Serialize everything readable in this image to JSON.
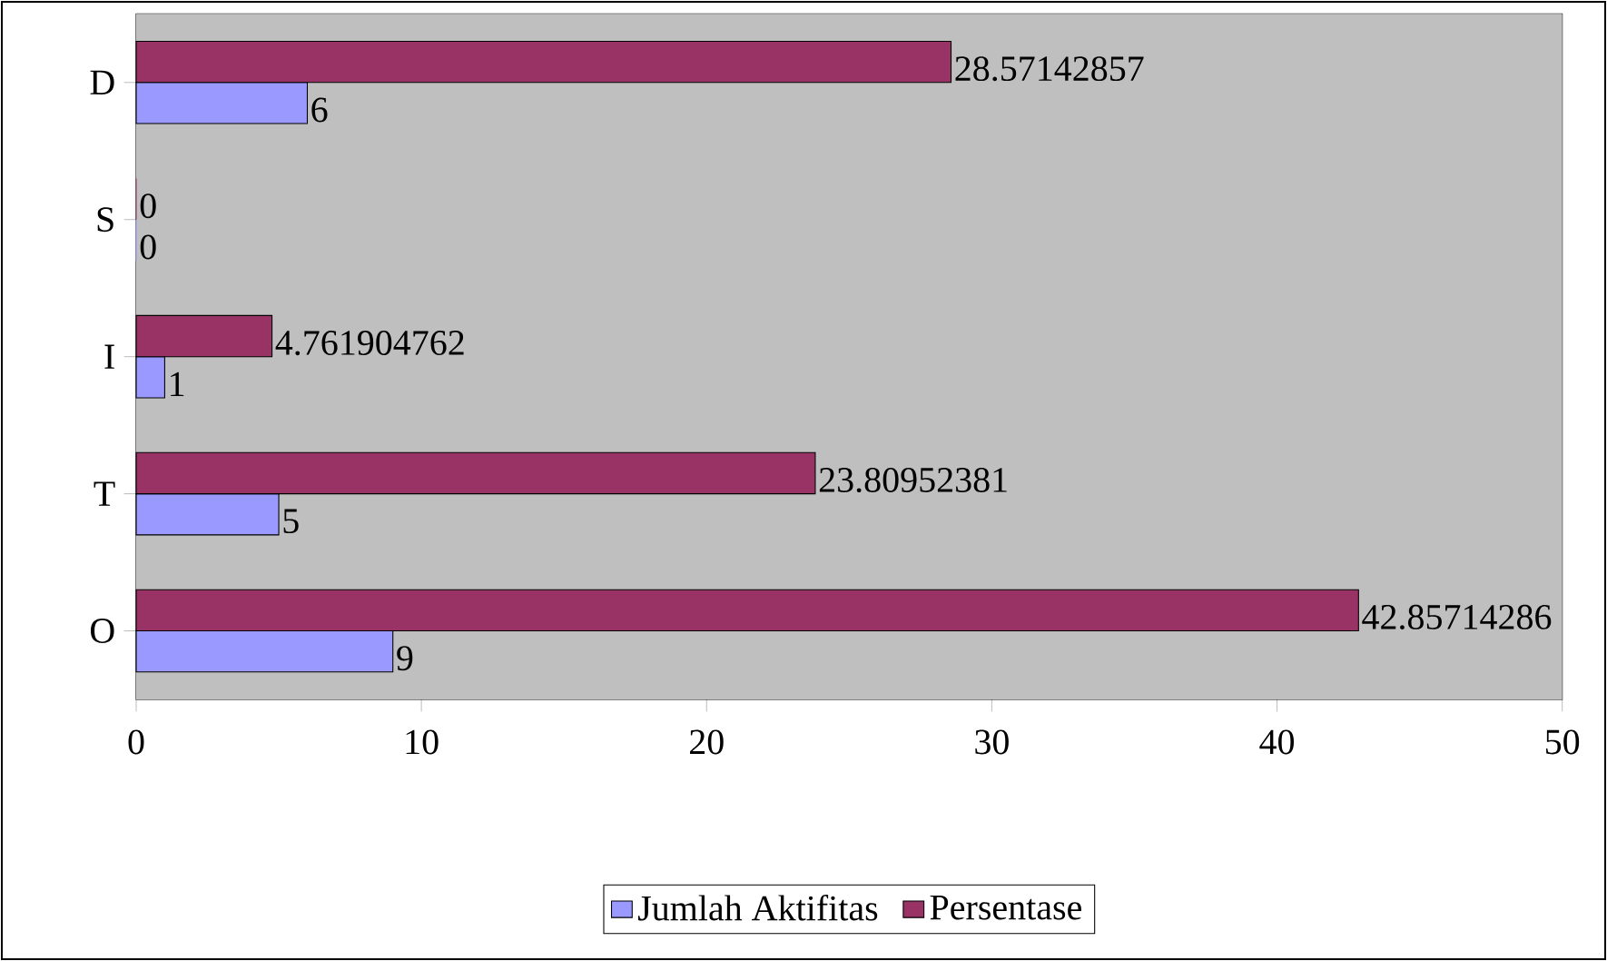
{
  "chart_data": {
    "type": "bar",
    "orientation": "horizontal",
    "categories": [
      "D",
      "S",
      "I",
      "T",
      "O"
    ],
    "series": [
      {
        "name": "Jumlah Aktifitas",
        "color": "#9999ff",
        "values": [
          6,
          0,
          1,
          5,
          9
        ]
      },
      {
        "name": "Persentase",
        "color": "#993366",
        "values": [
          28.57142857,
          0,
          4.761904762,
          23.80952381,
          42.85714286
        ]
      }
    ],
    "xlim": [
      0,
      50
    ],
    "xticks": [
      0,
      10,
      20,
      30,
      40,
      50
    ],
    "data_labels": true,
    "legend": "bottom",
    "grid": false
  }
}
